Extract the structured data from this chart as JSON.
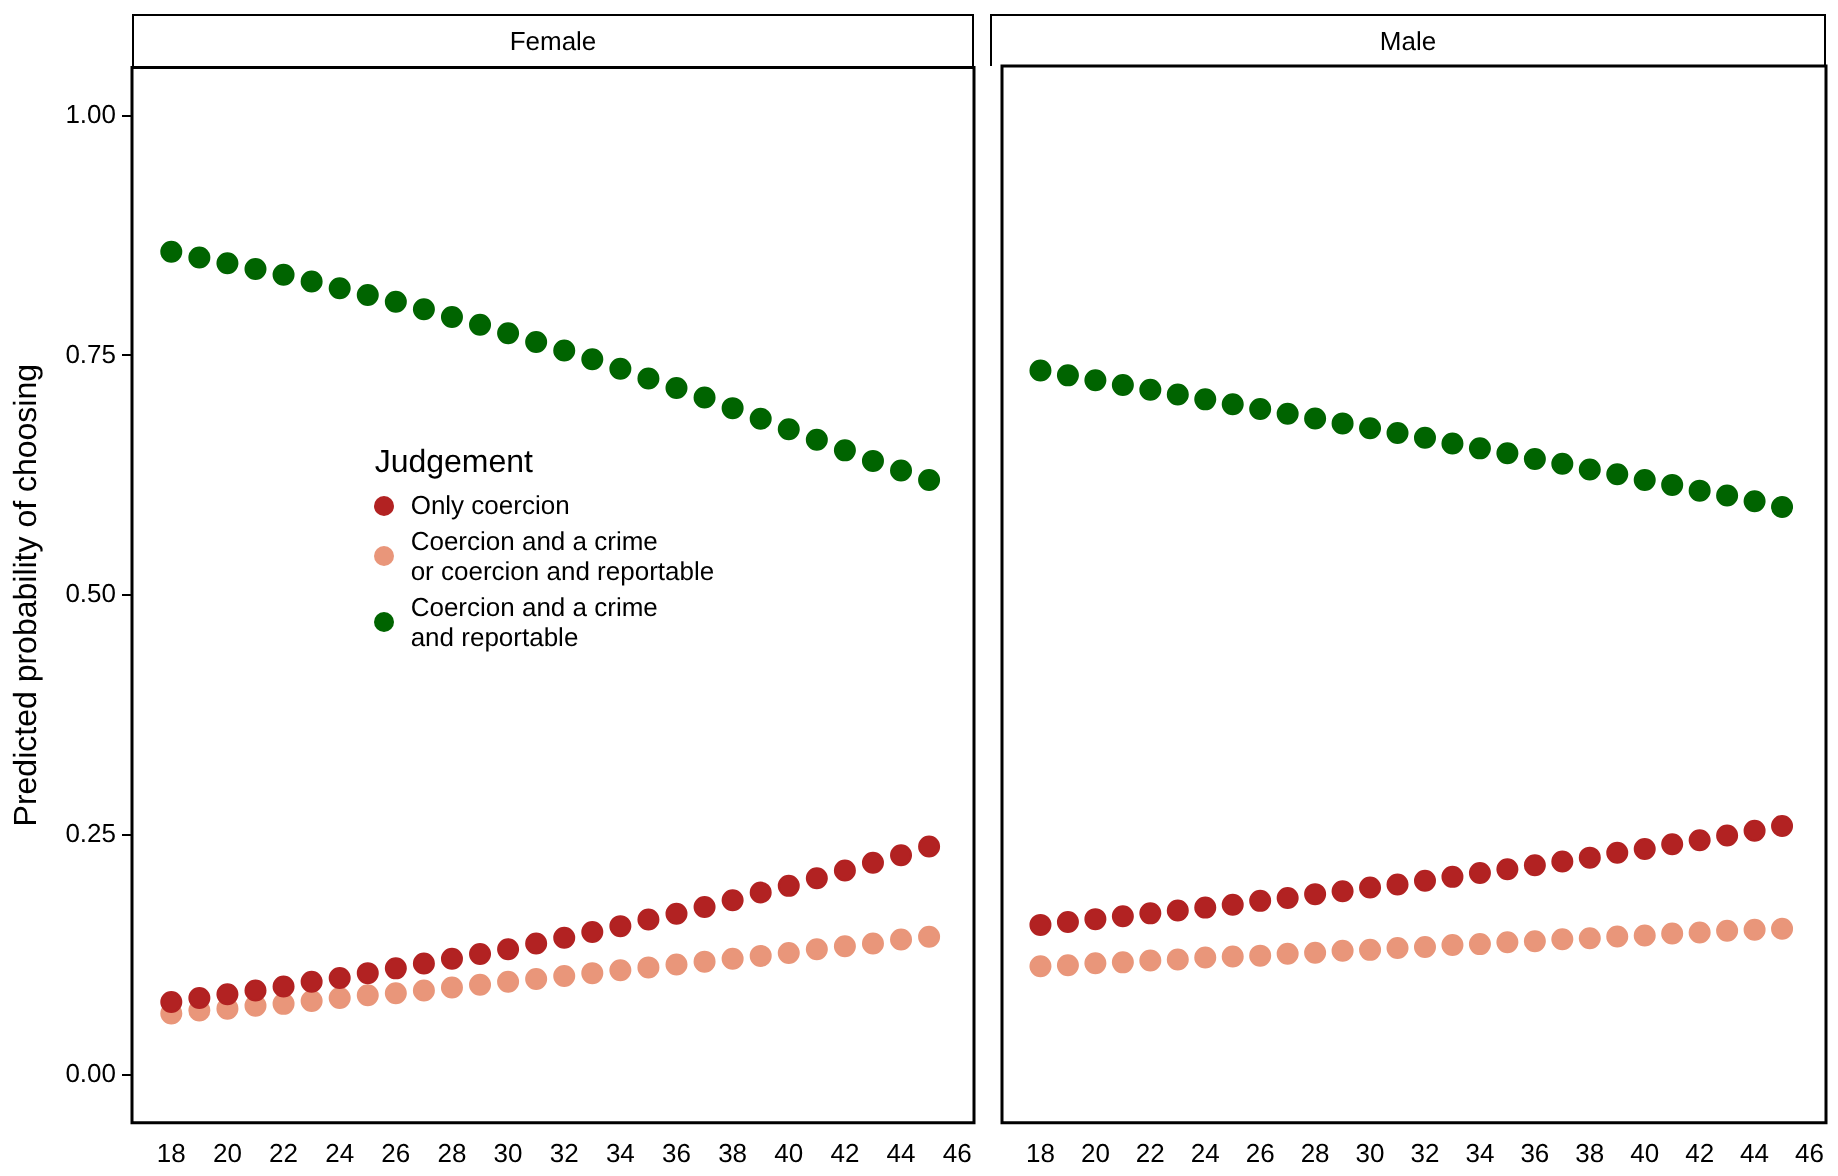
{
  "chart_data": [
    {
      "type": "scatter",
      "title": "Female",
      "ylabel": "Predicted probability of choosing",
      "legend_title": "Judgement",
      "legend": "center",
      "marker": "circle",
      "grid": false,
      "x": [
        18,
        19,
        20,
        21,
        22,
        23,
        24,
        25,
        26,
        27,
        28,
        29,
        30,
        31,
        32,
        33,
        34,
        35,
        36,
        37,
        38,
        39,
        40,
        41,
        42,
        43,
        44,
        45
      ],
      "xlim": [
        16.6,
        46.6
      ],
      "xticks": [
        18,
        20,
        22,
        24,
        26,
        28,
        30,
        32,
        34,
        36,
        38,
        40,
        42,
        44,
        46
      ],
      "ylim": [
        -0.05,
        1.05
      ],
      "yticks": [
        {
          "value": 0,
          "label": "0.00"
        },
        {
          "value": 0.25,
          "label": "0.25"
        },
        {
          "value": 0.5,
          "label": "0.50"
        },
        {
          "value": 0.75,
          "label": "0.75"
        },
        {
          "value": 1,
          "label": "1.00"
        }
      ],
      "series": [
        {
          "name": "Only coercion",
          "color": "#b22222",
          "values": [
            0.076,
            0.08,
            0.084,
            0.088,
            0.092,
            0.097,
            0.101,
            0.106,
            0.111,
            0.116,
            0.121,
            0.126,
            0.131,
            0.137,
            0.143,
            0.149,
            0.155,
            0.162,
            0.168,
            0.175,
            0.182,
            0.19,
            0.197,
            0.205,
            0.213,
            0.221,
            0.229,
            0.238
          ]
        },
        {
          "name": "Coercion and a crime\nor coercion and reportable",
          "color": "#e9967a",
          "values": [
            0.064,
            0.067,
            0.069,
            0.072,
            0.074,
            0.077,
            0.08,
            0.083,
            0.085,
            0.088,
            0.091,
            0.094,
            0.097,
            0.1,
            0.103,
            0.106,
            0.109,
            0.112,
            0.115,
            0.118,
            0.121,
            0.124,
            0.127,
            0.131,
            0.134,
            0.137,
            0.141,
            0.144
          ]
        },
        {
          "name": "Coercion and a crime\nand reportable",
          "color": "#006400",
          "values": [
            0.858,
            0.852,
            0.846,
            0.84,
            0.834,
            0.827,
            0.82,
            0.813,
            0.806,
            0.798,
            0.79,
            0.782,
            0.773,
            0.764,
            0.755,
            0.746,
            0.736,
            0.726,
            0.716,
            0.706,
            0.695,
            0.684,
            0.673,
            0.662,
            0.651,
            0.64,
            0.63,
            0.62
          ]
        }
      ]
    },
    {
      "type": "scatter",
      "title": "Male",
      "marker": "circle",
      "grid": false,
      "tick_labels": "x",
      "x": [
        18,
        19,
        20,
        21,
        22,
        23,
        24,
        25,
        26,
        27,
        28,
        29,
        30,
        31,
        32,
        33,
        34,
        35,
        36,
        37,
        38,
        39,
        40,
        41,
        42,
        43,
        44,
        45
      ],
      "xlim": [
        16.6,
        46.6
      ],
      "xticks": [
        18,
        20,
        22,
        24,
        26,
        28,
        30,
        32,
        34,
        36,
        38,
        40,
        42,
        44,
        46
      ],
      "ylim": [
        -0.05,
        1.05
      ],
      "series": [
        {
          "color": "#b22222",
          "values": [
            0.156,
            0.159,
            0.162,
            0.165,
            0.168,
            0.171,
            0.174,
            0.177,
            0.181,
            0.184,
            0.188,
            0.191,
            0.195,
            0.198,
            0.202,
            0.206,
            0.21,
            0.214,
            0.218,
            0.222,
            0.226,
            0.231,
            0.235,
            0.24,
            0.244,
            0.249,
            0.254,
            0.259
          ]
        },
        {
          "color": "#e9967a",
          "values": [
            0.113,
            0.114,
            0.116,
            0.117,
            0.119,
            0.12,
            0.122,
            0.123,
            0.124,
            0.126,
            0.127,
            0.129,
            0.13,
            0.132,
            0.133,
            0.135,
            0.136,
            0.138,
            0.139,
            0.141,
            0.142,
            0.144,
            0.145,
            0.147,
            0.148,
            0.15,
            0.151,
            0.152
          ]
        },
        {
          "color": "#006400",
          "values": [
            0.733,
            0.728,
            0.723,
            0.718,
            0.713,
            0.708,
            0.703,
            0.698,
            0.693,
            0.688,
            0.683,
            0.678,
            0.673,
            0.668,
            0.663,
            0.657,
            0.652,
            0.647,
            0.641,
            0.636,
            0.63,
            0.625,
            0.619,
            0.614,
            0.608,
            0.603,
            0.597,
            0.591
          ]
        }
      ]
    }
  ]
}
